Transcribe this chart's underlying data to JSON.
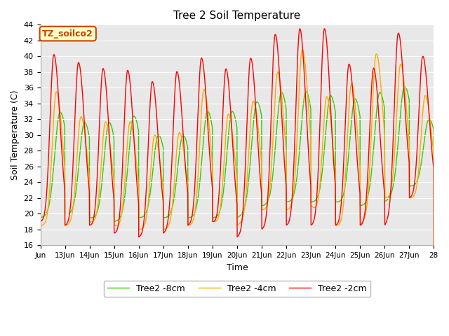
{
  "title": "Tree 2 Soil Temperature",
  "xlabel": "Time",
  "ylabel": "Soil Temperature (C)",
  "ylim": [
    16,
    44
  ],
  "yticks": [
    16,
    18,
    20,
    22,
    24,
    26,
    28,
    30,
    32,
    34,
    36,
    38,
    40,
    42,
    44
  ],
  "annotation_text": "TZ_soilco2",
  "annotation_color": "#cc4400",
  "annotation_bg": "#ffffcc",
  "line_colors": [
    "#ff0000",
    "#ffaa00",
    "#33cc00"
  ],
  "line_labels": [
    "Tree2 -2cm",
    "Tree2 -4cm",
    "Tree2 -8cm"
  ],
  "line_width": 1.0,
  "plot_bg": "#e8e8e8",
  "grid_color": "#ffffff",
  "start_day": 12,
  "end_day": 28,
  "n_points": 1920,
  "base_temp": 18.5,
  "peak_temps_2cm": [
    40.5,
    39.2,
    39.0,
    38.5,
    36.5,
    37.5,
    39.5,
    39.5,
    39.2,
    42.5,
    43.5,
    43.5,
    39.0,
    38.5,
    41.0,
    40.0
  ],
  "peak_temps_4cm": [
    35.5,
    32.0,
    32.0,
    32.0,
    30.0,
    30.0,
    35.5,
    33.0,
    33.0,
    38.0,
    40.5,
    36.5,
    36.5,
    38.0,
    39.0,
    35.0
  ],
  "peak_temps_8cm": [
    32.5,
    32.0,
    32.0,
    32.0,
    30.0,
    30.0,
    33.0,
    33.0,
    33.0,
    35.0,
    35.5,
    35.0,
    35.0,
    35.0,
    34.5,
    32.0
  ],
  "min_temps_2cm": [
    19.0,
    18.5,
    18.5,
    17.5,
    17.0,
    17.5,
    18.5,
    19.0,
    17.0,
    18.0,
    18.5,
    18.5,
    18.5,
    18.5,
    18.5,
    22.0
  ],
  "min_temps_4cm": [
    18.5,
    18.5,
    19.0,
    18.5,
    18.0,
    18.0,
    18.5,
    19.0,
    18.5,
    20.5,
    20.5,
    21.0,
    18.5,
    18.5,
    22.0,
    22.0
  ],
  "min_temps_8cm": [
    19.5,
    20.0,
    19.5,
    19.0,
    19.5,
    19.5,
    19.5,
    19.5,
    19.5,
    21.0,
    21.5,
    21.5,
    21.5,
    21.0,
    21.5,
    23.5
  ],
  "phase_shift_4cm": 0.1,
  "phase_shift_8cm": 0.25,
  "peak_sharpness": 8.0
}
